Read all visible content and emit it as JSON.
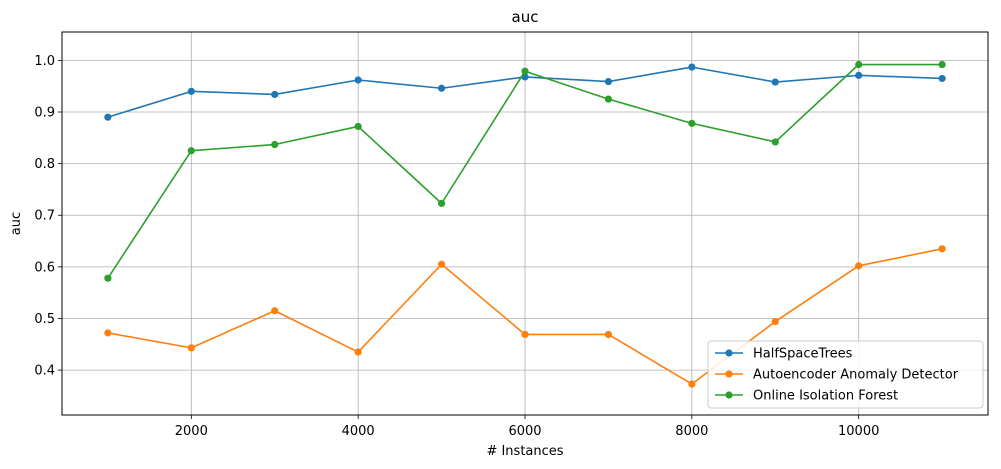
{
  "chart_data": {
    "type": "line",
    "title": "auc",
    "xlabel": "# Instances",
    "ylabel": "auc",
    "xlim": [
      450,
      11550
    ],
    "ylim": [
      0.313,
      1.055
    ],
    "xticks": [
      2000,
      4000,
      6000,
      8000,
      10000
    ],
    "xtick_labels": [
      "2000",
      "4000",
      "6000",
      "8000",
      "10000"
    ],
    "yticks": [
      0.4,
      0.5,
      0.6,
      0.7,
      0.8,
      0.9,
      1.0
    ],
    "ytick_labels": [
      "0.4",
      "0.5",
      "0.6",
      "0.7",
      "0.8",
      "0.9",
      "1.0"
    ],
    "grid": true,
    "legend_position": "lower-right",
    "x": [
      1000,
      2000,
      3000,
      4000,
      5000,
      6000,
      7000,
      8000,
      9000,
      10000,
      11000
    ],
    "series": [
      {
        "name": "HalfSpaceTrees",
        "color": "#1f77b4",
        "values": [
          0.89,
          0.94,
          0.934,
          0.962,
          0.946,
          0.968,
          0.959,
          0.987,
          0.958,
          0.971,
          0.965
        ]
      },
      {
        "name": "Autoencoder Anomaly Detector",
        "color": "#ff7f0e",
        "values": [
          0.472,
          0.443,
          0.515,
          0.435,
          0.605,
          0.469,
          0.469,
          0.373,
          0.494,
          0.602,
          0.635
        ]
      },
      {
        "name": "Online Isolation Forest",
        "color": "#2ca02c",
        "values": [
          0.578,
          0.825,
          0.837,
          0.872,
          0.723,
          0.979,
          0.925,
          0.878,
          0.842,
          0.992,
          0.992
        ]
      }
    ]
  }
}
